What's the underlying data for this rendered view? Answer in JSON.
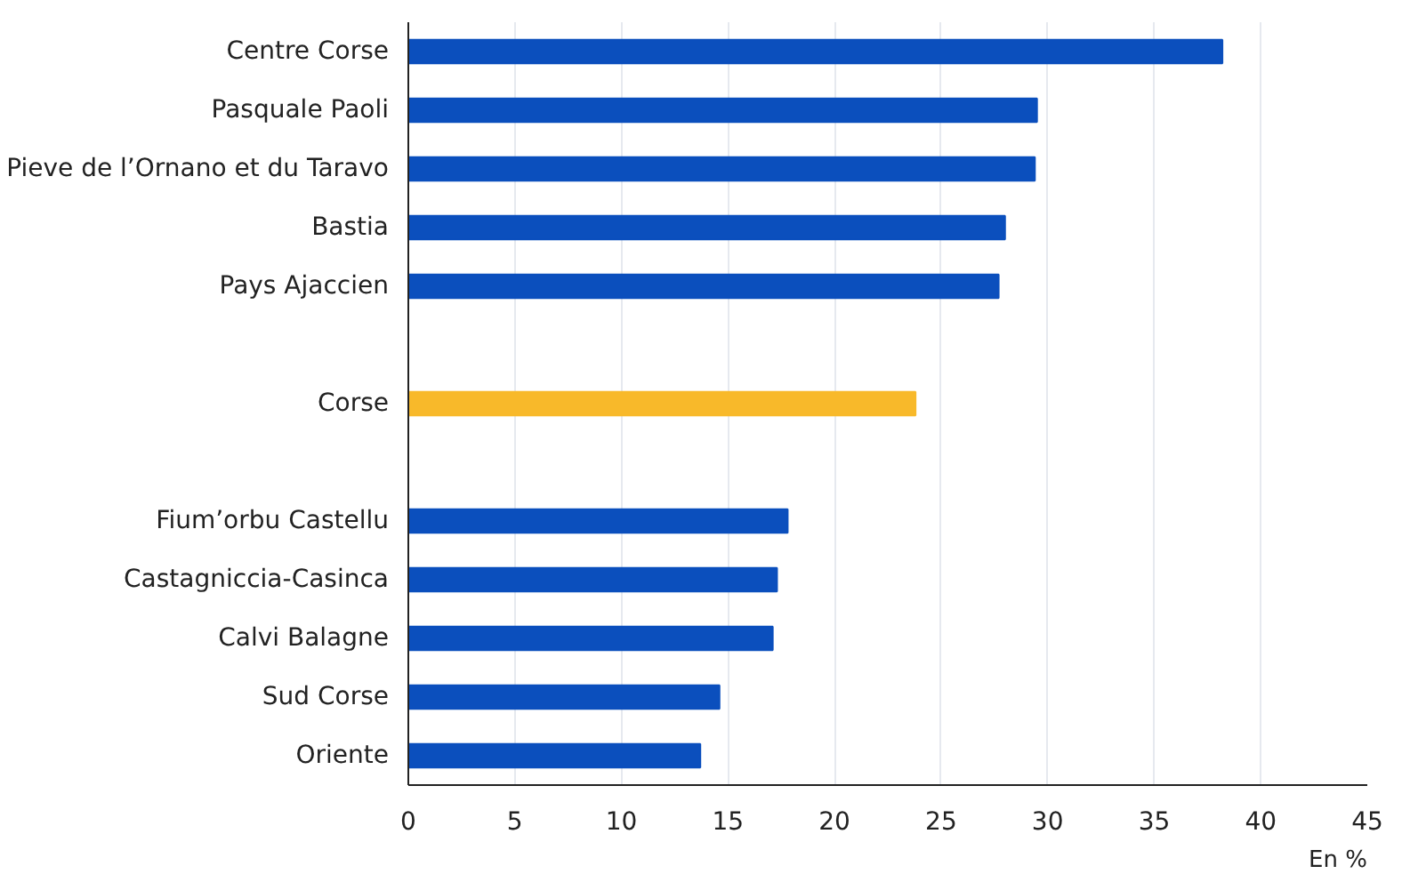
{
  "chart_data": {
    "type": "bar",
    "orientation": "horizontal",
    "xlabel": "En %",
    "categories": [
      "Centre Corse",
      "Pasquale Paoli",
      "Pieve de l’Ornano et du Taravo",
      "Bastia",
      "Pays Ajaccien",
      null,
      "Corse",
      null,
      "Fium’orbu Castellu",
      "Castagniccia-Casinca",
      "Calvi Balagne",
      "Sud Corse",
      "Oriente"
    ],
    "values": [
      38.2,
      29.5,
      29.4,
      28.0,
      27.7,
      null,
      23.8,
      null,
      17.8,
      17.3,
      17.1,
      14.6,
      13.7
    ],
    "colors": [
      "#0b4fbd",
      "#0b4fbd",
      "#0b4fbd",
      "#0b4fbd",
      "#0b4fbd",
      "#0b4fbd",
      "#f8b92a",
      "#0b4fbd",
      "#0b4fbd",
      "#0b4fbd",
      "#0b4fbd",
      "#0b4fbd",
      "#0b4fbd"
    ],
    "xlim": [
      0,
      45
    ],
    "xticks": [
      0,
      5,
      10,
      15,
      20,
      25,
      30,
      35,
      40,
      45
    ],
    "grid": "x"
  }
}
